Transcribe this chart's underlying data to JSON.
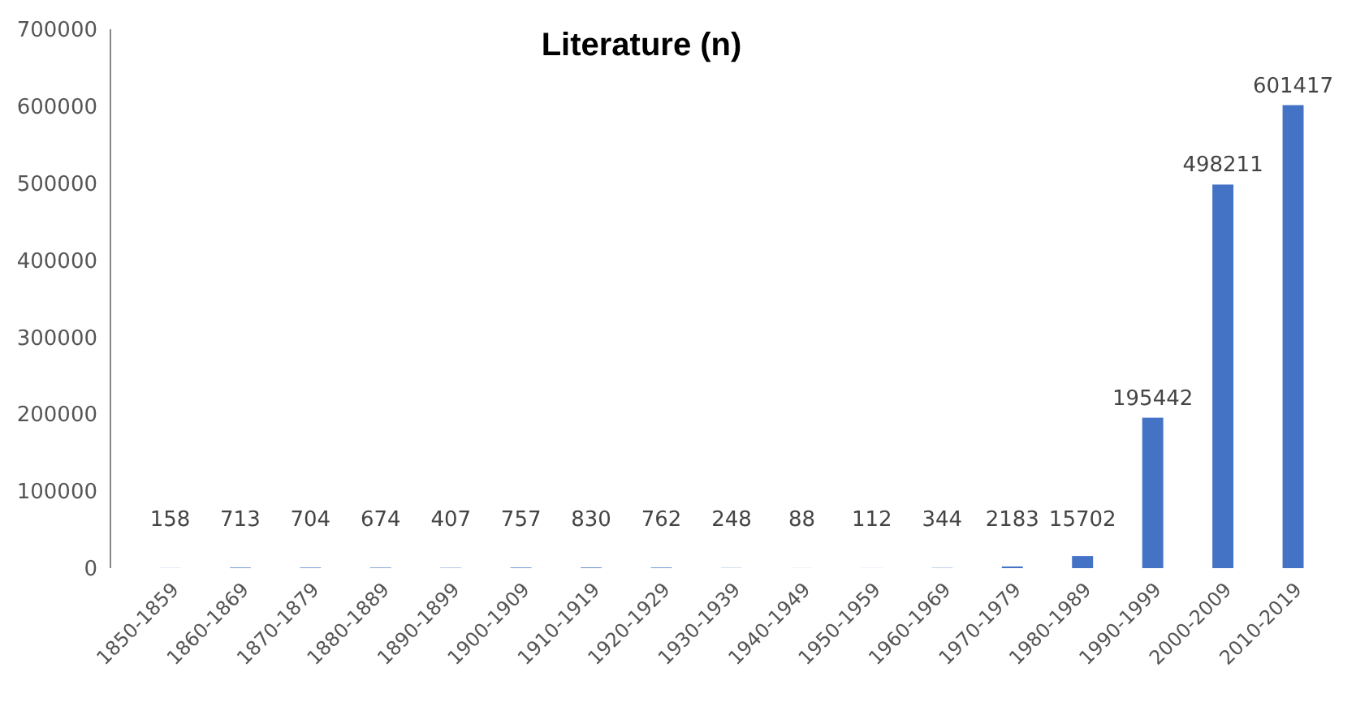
{
  "chart_data": {
    "type": "bar",
    "title": "Literature (n)",
    "categories": [
      "1850-1859",
      "1860-1869",
      "1870-1879",
      "1880-1889",
      "1890-1899",
      "1900-1909",
      "1910-1919",
      "1920-1929",
      "1930-1939",
      "1940-1949",
      "1950-1959",
      "1960-1969",
      "1970-1979",
      "1980-1989",
      "1990-1999",
      "2000-2009",
      "2010-2019"
    ],
    "values": [
      158,
      713,
      704,
      674,
      407,
      757,
      830,
      762,
      248,
      88,
      112,
      344,
      2183,
      15702,
      195442,
      498211,
      601417
    ],
    "color": "#4472c4",
    "ylim": [
      0,
      700000
    ],
    "yticks": [
      0,
      100000,
      200000,
      300000,
      400000,
      500000,
      600000,
      700000
    ],
    "grid": false,
    "data_labels": true
  }
}
